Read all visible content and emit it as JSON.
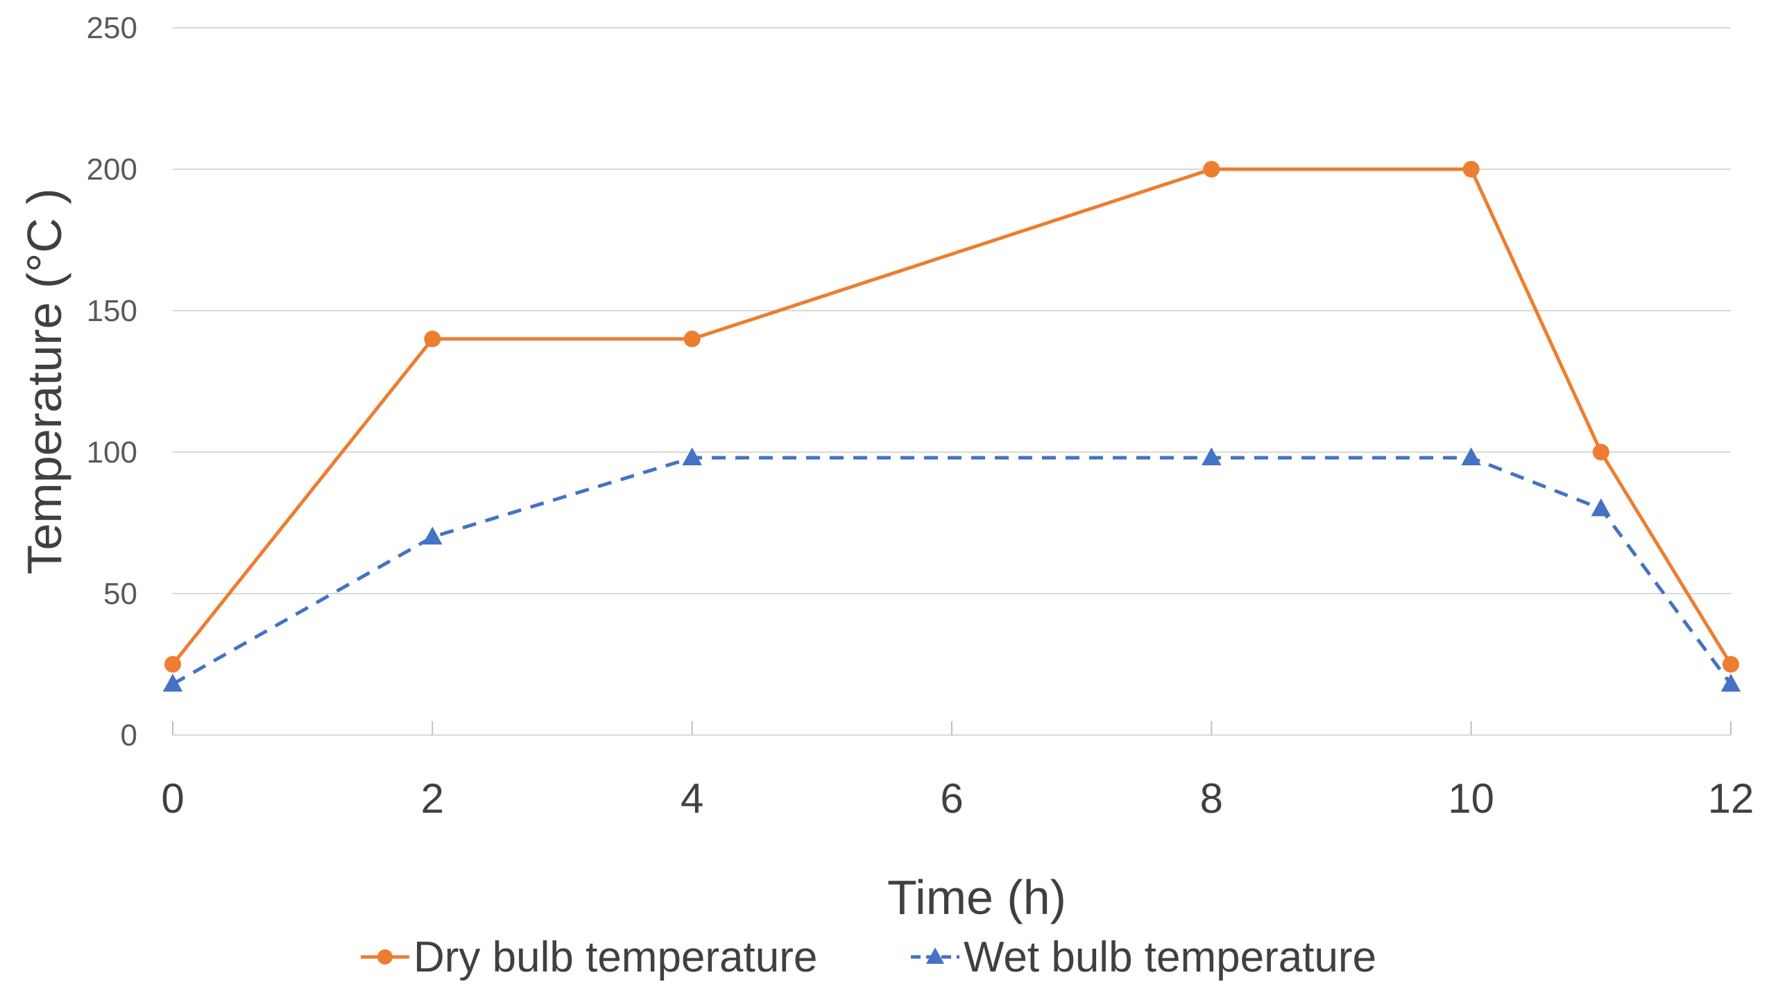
{
  "chart_data": {
    "type": "line",
    "title": "",
    "xlabel": "Time (h)",
    "ylabel": "Temperature (°C )",
    "xlim": [
      0,
      12
    ],
    "ylim": [
      0,
      250
    ],
    "xticks": [
      0,
      2,
      4,
      6,
      8,
      10,
      12
    ],
    "yticks": [
      0,
      50,
      100,
      150,
      200,
      250
    ],
    "grid": "horizontal",
    "legend_position": "bottom",
    "series": [
      {
        "name": "Dry bulb temperature",
        "color": "#ED7D31",
        "line_style": "solid",
        "marker": "circle",
        "x": [
          0,
          2,
          4,
          8,
          10,
          11,
          12
        ],
        "y": [
          25,
          140,
          140,
          200,
          200,
          100,
          25
        ]
      },
      {
        "name": "Wet bulb temperature",
        "color": "#4472C4",
        "line_style": "dashed",
        "marker": "triangle",
        "x": [
          0,
          2,
          4,
          8,
          10,
          11,
          12
        ],
        "y": [
          18,
          70,
          98,
          98,
          98,
          80,
          18
        ]
      }
    ]
  }
}
